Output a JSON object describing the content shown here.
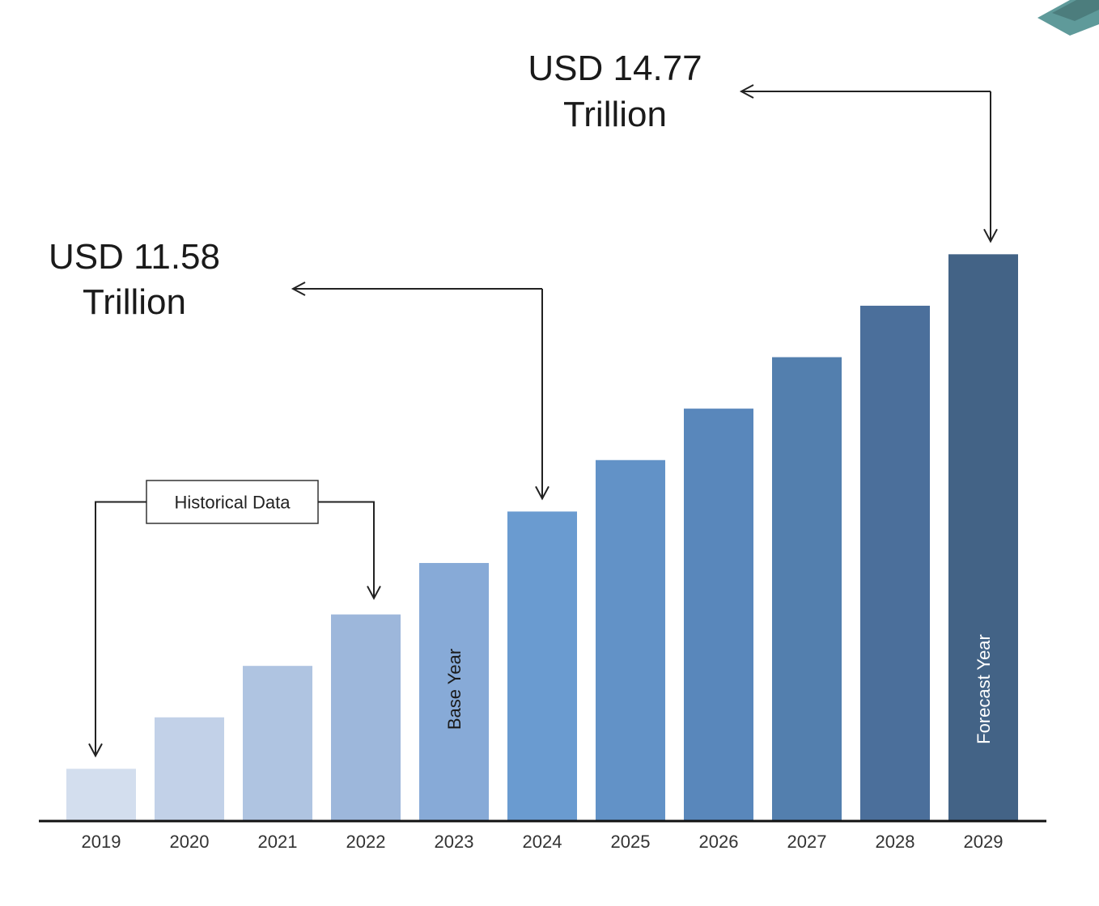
{
  "chart_data": {
    "type": "bar",
    "title": "",
    "xlabel": "",
    "ylabel": "",
    "categories": [
      "2019",
      "2020",
      "2021",
      "2022",
      "2023",
      "2024",
      "2025",
      "2026",
      "2027",
      "2028",
      "2029"
    ],
    "values": [
      1,
      2,
      3,
      4,
      5,
      6,
      7,
      8,
      9,
      10,
      11
    ],
    "ylim": [
      0,
      12.2
    ],
    "grid": false,
    "legend": "none",
    "bar_colors": [
      "#d3deee",
      "#c2d1e8",
      "#afc4e1",
      "#9db7db",
      "#87aad7",
      "#6a9bd0",
      "#6292c7",
      "#5987bb",
      "#537fae",
      "#4b6f9b",
      "#436386"
    ],
    "bar_labels": [
      {
        "category": "2023",
        "text": "Base Year",
        "color": "#1a1a1a"
      },
      {
        "category": "2029",
        "text": "Forecast Year",
        "color": "#ffffff"
      }
    ],
    "annotations": [
      {
        "id": "value-2024",
        "line1": "USD 11.58",
        "line2": "Trillion",
        "target": "2024"
      },
      {
        "id": "value-2029",
        "line1": "USD 14.77",
        "line2": "Trillion",
        "target": "2029"
      }
    ],
    "historical_box": {
      "text": "Historical  Data",
      "from": "2019",
      "to": "2022"
    }
  },
  "colors": {
    "axis": "#111111",
    "arrow": "#222222",
    "corner_logo": "#5f9a9a"
  }
}
